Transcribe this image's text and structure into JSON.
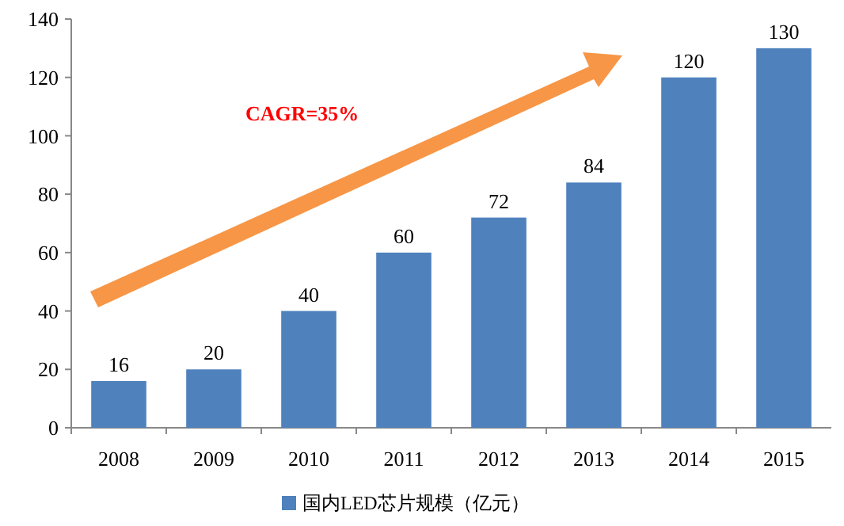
{
  "chart_data": {
    "type": "bar",
    "categories": [
      "2008",
      "2009",
      "2010",
      "2011",
      "2012",
      "2013",
      "2014",
      "2015"
    ],
    "series": [
      {
        "name": "国内LED芯片规模（亿元）",
        "color": "#4f81bd",
        "values": [
          16,
          20,
          40,
          60,
          72,
          84,
          120,
          130
        ]
      }
    ],
    "ylim": [
      0,
      140
    ],
    "yticks": [
      0,
      20,
      40,
      60,
      80,
      100,
      120,
      140
    ],
    "grid": false,
    "legend": "bottom",
    "data_labels": true,
    "annotations": [
      "CAGR=35%"
    ]
  }
}
